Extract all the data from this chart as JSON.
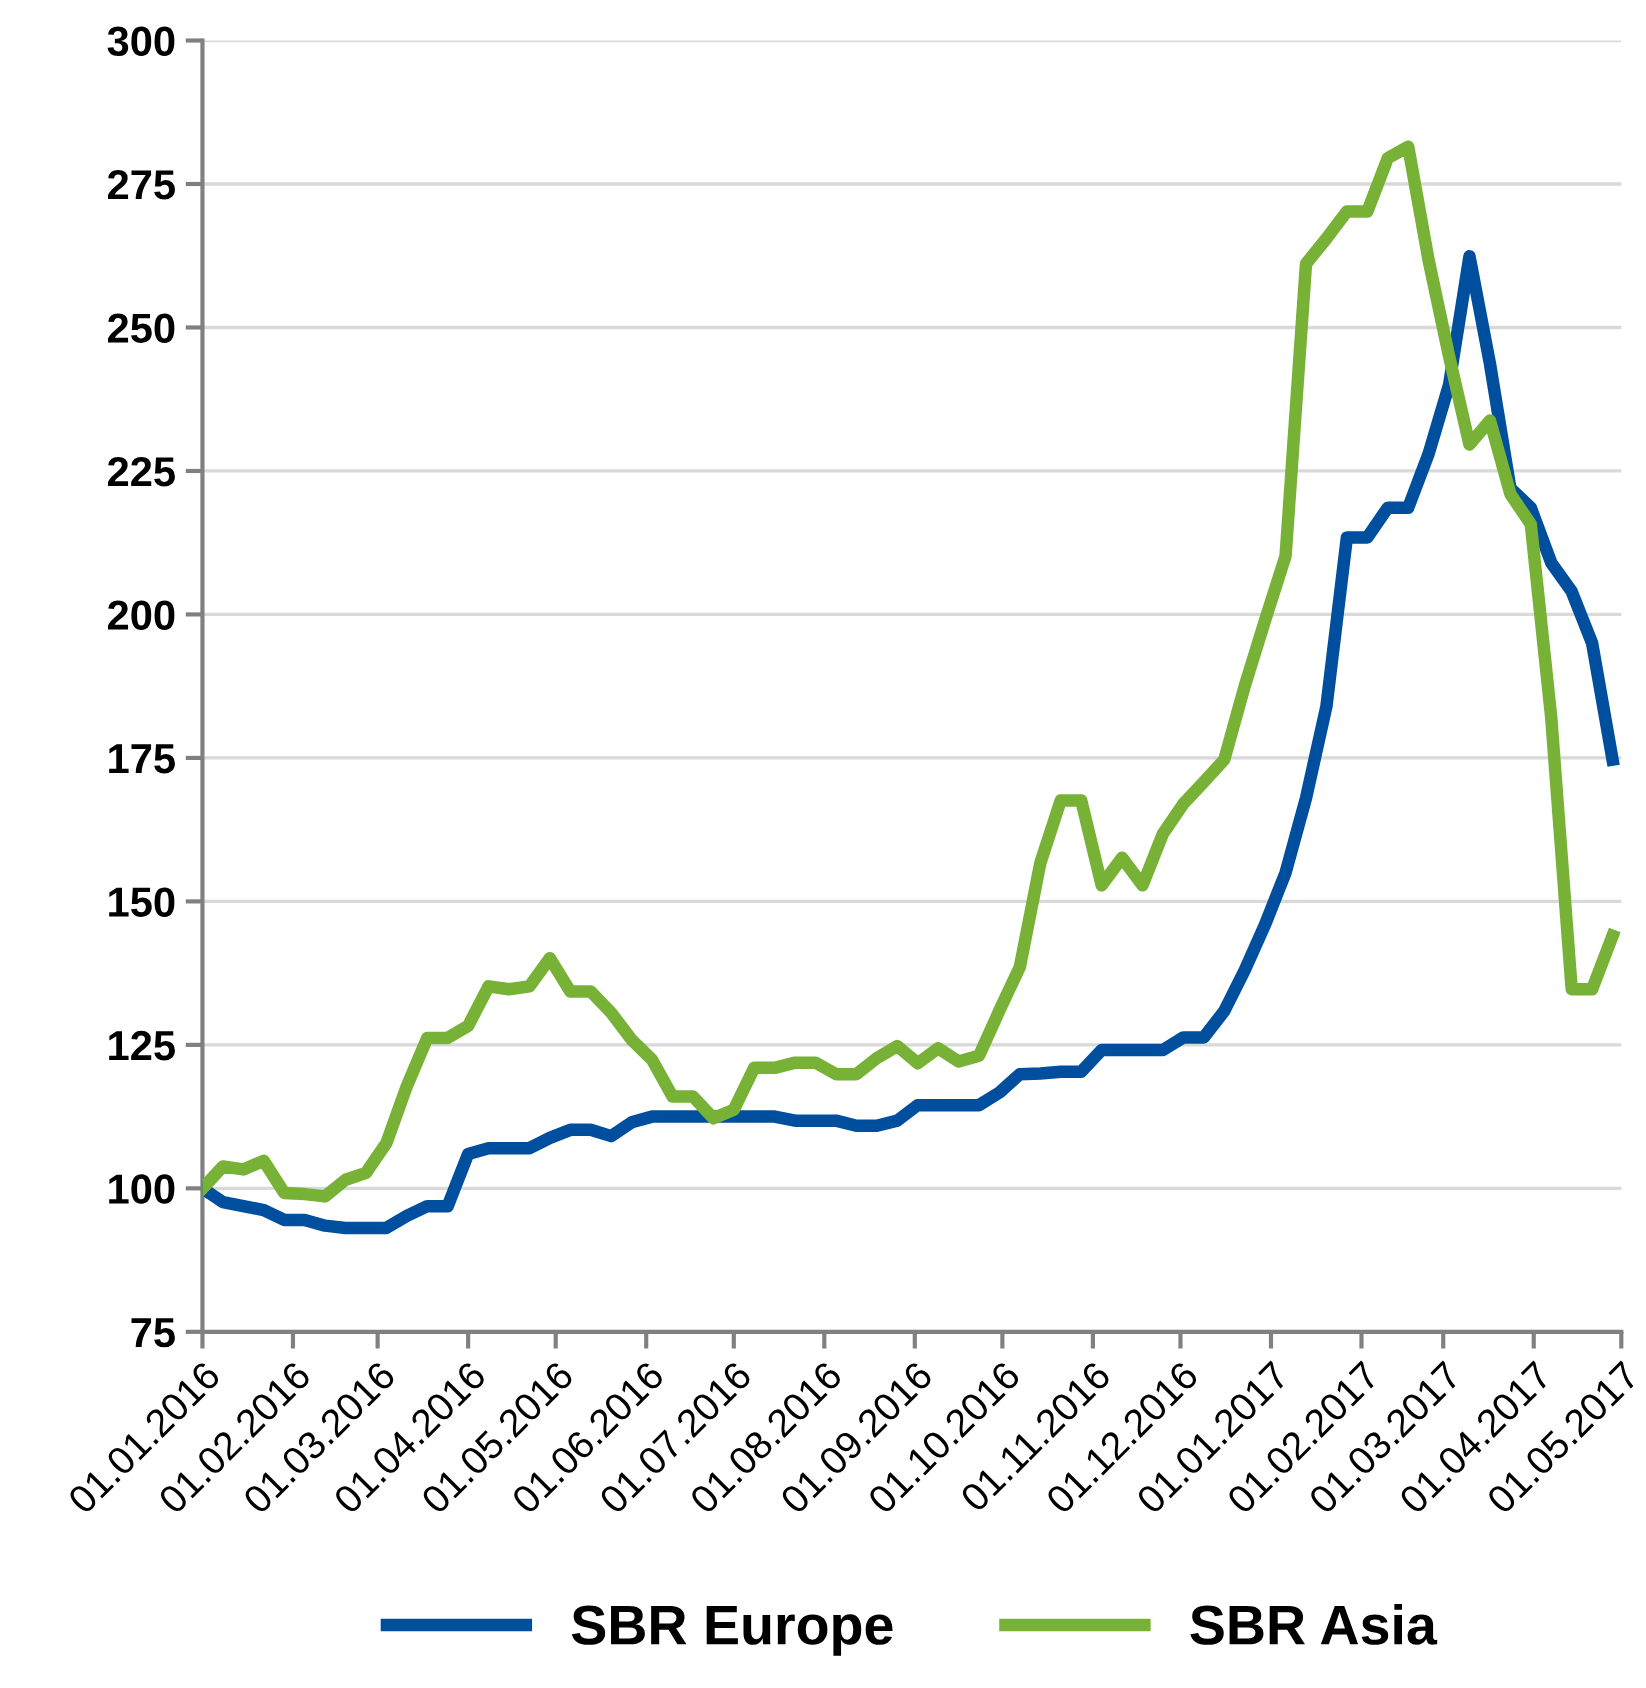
{
  "chart_data": {
    "type": "line",
    "x": [
      "2016-01-01",
      "2016-01-08",
      "2016-01-15",
      "2016-01-22",
      "2016-01-29",
      "2016-02-05",
      "2016-02-12",
      "2016-02-19",
      "2016-02-26",
      "2016-03-04",
      "2016-03-11",
      "2016-03-18",
      "2016-03-25",
      "2016-04-01",
      "2016-04-08",
      "2016-04-15",
      "2016-04-22",
      "2016-04-29",
      "2016-05-06",
      "2016-05-13",
      "2016-05-20",
      "2016-05-27",
      "2016-06-03",
      "2016-06-10",
      "2016-06-17",
      "2016-06-24",
      "2016-07-01",
      "2016-07-08",
      "2016-07-15",
      "2016-07-22",
      "2016-07-29",
      "2016-08-05",
      "2016-08-12",
      "2016-08-19",
      "2016-08-26",
      "2016-09-02",
      "2016-09-09",
      "2016-09-16",
      "2016-09-23",
      "2016-09-30",
      "2016-10-07",
      "2016-10-14",
      "2016-10-21",
      "2016-10-28",
      "2016-11-04",
      "2016-11-11",
      "2016-11-18",
      "2016-11-25",
      "2016-12-02",
      "2016-12-09",
      "2016-12-16",
      "2016-12-23",
      "2016-12-30",
      "2017-01-06",
      "2017-01-13",
      "2017-01-20",
      "2017-01-27",
      "2017-02-03",
      "2017-02-10",
      "2017-02-17",
      "2017-02-24",
      "2017-03-03",
      "2017-03-10",
      "2017-03-17",
      "2017-03-24",
      "2017-03-31",
      "2017-04-07",
      "2017-04-14",
      "2017-04-21",
      "2017-04-28"
    ],
    "series": [
      {
        "name": "SBR Europe",
        "color": "#004f9f",
        "values": [
          100,
          97.6,
          96.9,
          96.2,
          94.5,
          94.5,
          93.5,
          93.1,
          93.1,
          93.1,
          95.2,
          96.9,
          96.9,
          106,
          107,
          107,
          107,
          108.8,
          110.2,
          110.2,
          109.1,
          111.5,
          112.5,
          112.5,
          112.5,
          112.5,
          112.5,
          112.5,
          112.5,
          111.8,
          111.8,
          111.8,
          110.9,
          110.9,
          111.8,
          114.5,
          114.5,
          114.5,
          114.5,
          116.7,
          119.9,
          120,
          120.3,
          120.3,
          124.1,
          124.1,
          124.1,
          124.1,
          126.3,
          126.3,
          130.9,
          138,
          146,
          155,
          168,
          184,
          213.4,
          213.4,
          218.6,
          218.6,
          228,
          240,
          262.4,
          243.7,
          222,
          218.6,
          209,
          204,
          195,
          174.7
        ]
      },
      {
        "name": "SBR Asia",
        "color": "#77b236",
        "values": [
          100,
          103.8,
          103.3,
          104.8,
          99.2,
          99,
          98.6,
          101.5,
          102.7,
          107.9,
          117.8,
          126.2,
          126.2,
          128.3,
          135.2,
          134.7,
          135.2,
          140.1,
          134.3,
          134.3,
          130.6,
          125.9,
          122.4,
          116,
          116,
          112.2,
          113.7,
          121,
          121,
          121.9,
          121.9,
          119.9,
          119.9,
          122.7,
          124.8,
          121.8,
          124.4,
          122.1,
          123.1,
          131,
          138.6,
          156.7,
          167.6,
          167.6,
          152.8,
          157.6,
          152.8,
          161.8,
          167,
          170.8,
          174.7,
          187.5,
          199,
          210.2,
          261.1,
          265.5,
          270.2,
          270.2,
          279.5,
          281.5,
          261.7,
          245,
          229.6,
          233.8,
          221,
          215.7,
          182,
          134.7,
          134.7,
          144
        ]
      }
    ],
    "xlim": [
      "2016-01-01",
      "2017-05-01"
    ],
    "xticks": [
      {
        "value": "2016-01-01",
        "label": "01.01.2016"
      },
      {
        "value": "2016-02-01",
        "label": "01.02.2016"
      },
      {
        "value": "2016-03-01",
        "label": "01.03.2016"
      },
      {
        "value": "2016-04-01",
        "label": "01.04.2016"
      },
      {
        "value": "2016-05-01",
        "label": "01.05.2016"
      },
      {
        "value": "2016-06-01",
        "label": "01.06.2016"
      },
      {
        "value": "2016-07-01",
        "label": "01.07.2016"
      },
      {
        "value": "2016-08-01",
        "label": "01.08.2016"
      },
      {
        "value": "2016-09-01",
        "label": "01.09.2016"
      },
      {
        "value": "2016-10-01",
        "label": "01.10.2016"
      },
      {
        "value": "2016-11-01",
        "label": "01.11.2016"
      },
      {
        "value": "2016-12-01",
        "label": "01.12.2016"
      },
      {
        "value": "2017-01-01",
        "label": "01.01.2017"
      },
      {
        "value": "2017-02-01",
        "label": "01.02.2017"
      },
      {
        "value": "2017-03-01",
        "label": "01.03.2017"
      },
      {
        "value": "2017-04-01",
        "label": "01.04.2017"
      },
      {
        "value": "2017-05-01",
        "label": "01.05.2017"
      }
    ],
    "ylim": [
      75,
      300
    ],
    "yticks": [
      75,
      100,
      125,
      150,
      175,
      200,
      225,
      250,
      275,
      300
    ],
    "grid": "y",
    "legend": "bottom",
    "marker": "none",
    "line_style": "solid"
  }
}
